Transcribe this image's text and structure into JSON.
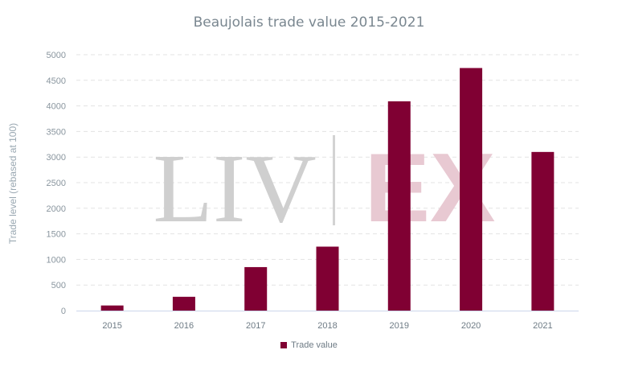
{
  "watermark": {
    "left": "LIV",
    "right": "EX"
  },
  "chart_data": {
    "type": "bar",
    "title": "Beaujolais trade value 2015-2021",
    "xlabel": "",
    "ylabel": "Trade level (rebased at 100)",
    "categories": [
      "2015",
      "2016",
      "2017",
      "2018",
      "2019",
      "2020",
      "2021"
    ],
    "series": [
      {
        "name": "Trade value",
        "values": [
          100,
          270,
          850,
          1250,
          4090,
          4740,
          3100
        ],
        "color": "#800033"
      }
    ],
    "ylim": [
      0,
      5000
    ],
    "yticks": [
      "0",
      "500",
      "1000",
      "1500",
      "2000",
      "2500",
      "3000",
      "3500",
      "4000",
      "4500",
      "5000"
    ],
    "grid": true,
    "legend": "bottom-center"
  }
}
